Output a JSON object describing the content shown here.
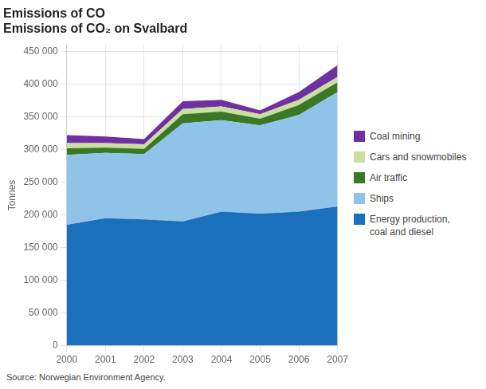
{
  "chart_data": {
    "type": "area",
    "stacked": true,
    "title": "Emissions of CO₂ on Svalbard",
    "annotations": [
      "Emissions of CO"
    ],
    "source": "Source: Norwegian Environment Agency.",
    "y_label": "Tonnes",
    "x": [
      2000,
      2001,
      2002,
      2003,
      2004,
      2005,
      2006,
      2007
    ],
    "series": [
      {
        "name": "Energy production,\ncoal and diesel",
        "color": "#1b70bc",
        "values": [
          185000,
          195000,
          193000,
          190000,
          205000,
          202000,
          205000,
          213000
        ]
      },
      {
        "name": "Ships",
        "color": "#8fc3e8",
        "values": [
          107000,
          100000,
          100000,
          150000,
          140000,
          135000,
          148000,
          175000
        ]
      },
      {
        "name": "Air traffic",
        "color": "#3a7828",
        "values": [
          10000,
          8000,
          8000,
          14000,
          13000,
          10000,
          15000,
          15000
        ]
      },
      {
        "name": "Cars and snowmobiles",
        "color": "#c8dfa0",
        "values": [
          8000,
          7000,
          7000,
          8000,
          8000,
          7000,
          8000,
          8000
        ]
      },
      {
        "name": "Coal mining",
        "color": "#7030a0",
        "values": [
          12000,
          10000,
          8000,
          12000,
          10000,
          6000,
          12000,
          18000
        ]
      }
    ],
    "xlim": [
      2000,
      2007
    ],
    "xticks": [
      2000,
      2001,
      2002,
      2003,
      2004,
      2005,
      2006,
      2007
    ],
    "ylim": [
      0,
      460000
    ],
    "yticks": [
      0,
      {
        "value": 50000,
        "label": "50 000"
      },
      {
        "value": 100000,
        "label": "100 000"
      },
      {
        "value": 150000,
        "label": "150 000"
      },
      {
        "value": 200000,
        "label": "200 000"
      },
      {
        "value": 250000,
        "label": "250 000"
      },
      {
        "value": 300000,
        "label": "300 000"
      },
      {
        "value": 350000,
        "label": "350 000"
      },
      {
        "value": 400000,
        "label": "400 000"
      },
      {
        "value": 450000,
        "label": "450 000"
      }
    ],
    "grid": true,
    "legend": "right"
  }
}
